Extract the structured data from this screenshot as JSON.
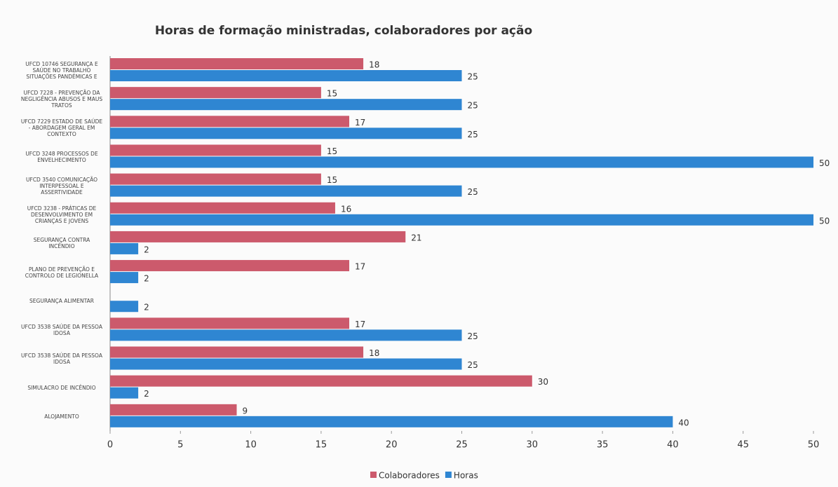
{
  "chart_data": {
    "type": "barh",
    "title": "Horas de formação ministradas, colaboradores por ação",
    "categories": [
      "UFCD 10746 SEGURANÇA E SAÚDE NO TRABALHO SITUAÇÕES PANDÉMICAS E",
      "UFCD 7228 - PREVENÇÃO DA NEGLIGÊNCIA ABUSOS E MAUS TRATOS",
      "UFCD 7229 ESTADO DE SAÚDE - ABORDAGEM GERAL EM CONTEXTO",
      "UFCD 3248 PROCESSOS DE ENVELHECIMENTO",
      "UFCD 3540 COMUNICAÇÃO INTERPESSOAL E ASSERTIVIDADE",
      "UFCD 3238 - PRÁTICAS DE DESENVOLVIMENTO EM CRIANÇAS E JOVENS",
      "SEGURANÇA CONTRA INCÊNDIO",
      "PLANO DE PREVENÇÃO E CONTROLO DE LEGIONELLA",
      "SEGURANÇA ALIMENTAR",
      "UFCD 3538 SAÚDE DA PESSOA IDOSA",
      "UFCD 3538 SAÚDE DA PESSOA IDOSA",
      "SIMULACRO DE INCÊNDIO",
      "ALOJAMENTO"
    ],
    "series": [
      {
        "name": "Colaboradores",
        "color": "#cc5a6c",
        "values": [
          18,
          15,
          17,
          15,
          15,
          16,
          21,
          17,
          null,
          17,
          18,
          30,
          9
        ]
      },
      {
        "name": "Horas",
        "color": "#2f86d2",
        "values": [
          25,
          25,
          25,
          50,
          25,
          50,
          2,
          2,
          2,
          25,
          25,
          2,
          40
        ]
      }
    ],
    "xlim": [
      0,
      50
    ],
    "xticks": [
      0,
      5,
      10,
      15,
      20,
      25,
      30,
      35,
      40,
      45,
      50
    ],
    "legend": "bottom"
  }
}
